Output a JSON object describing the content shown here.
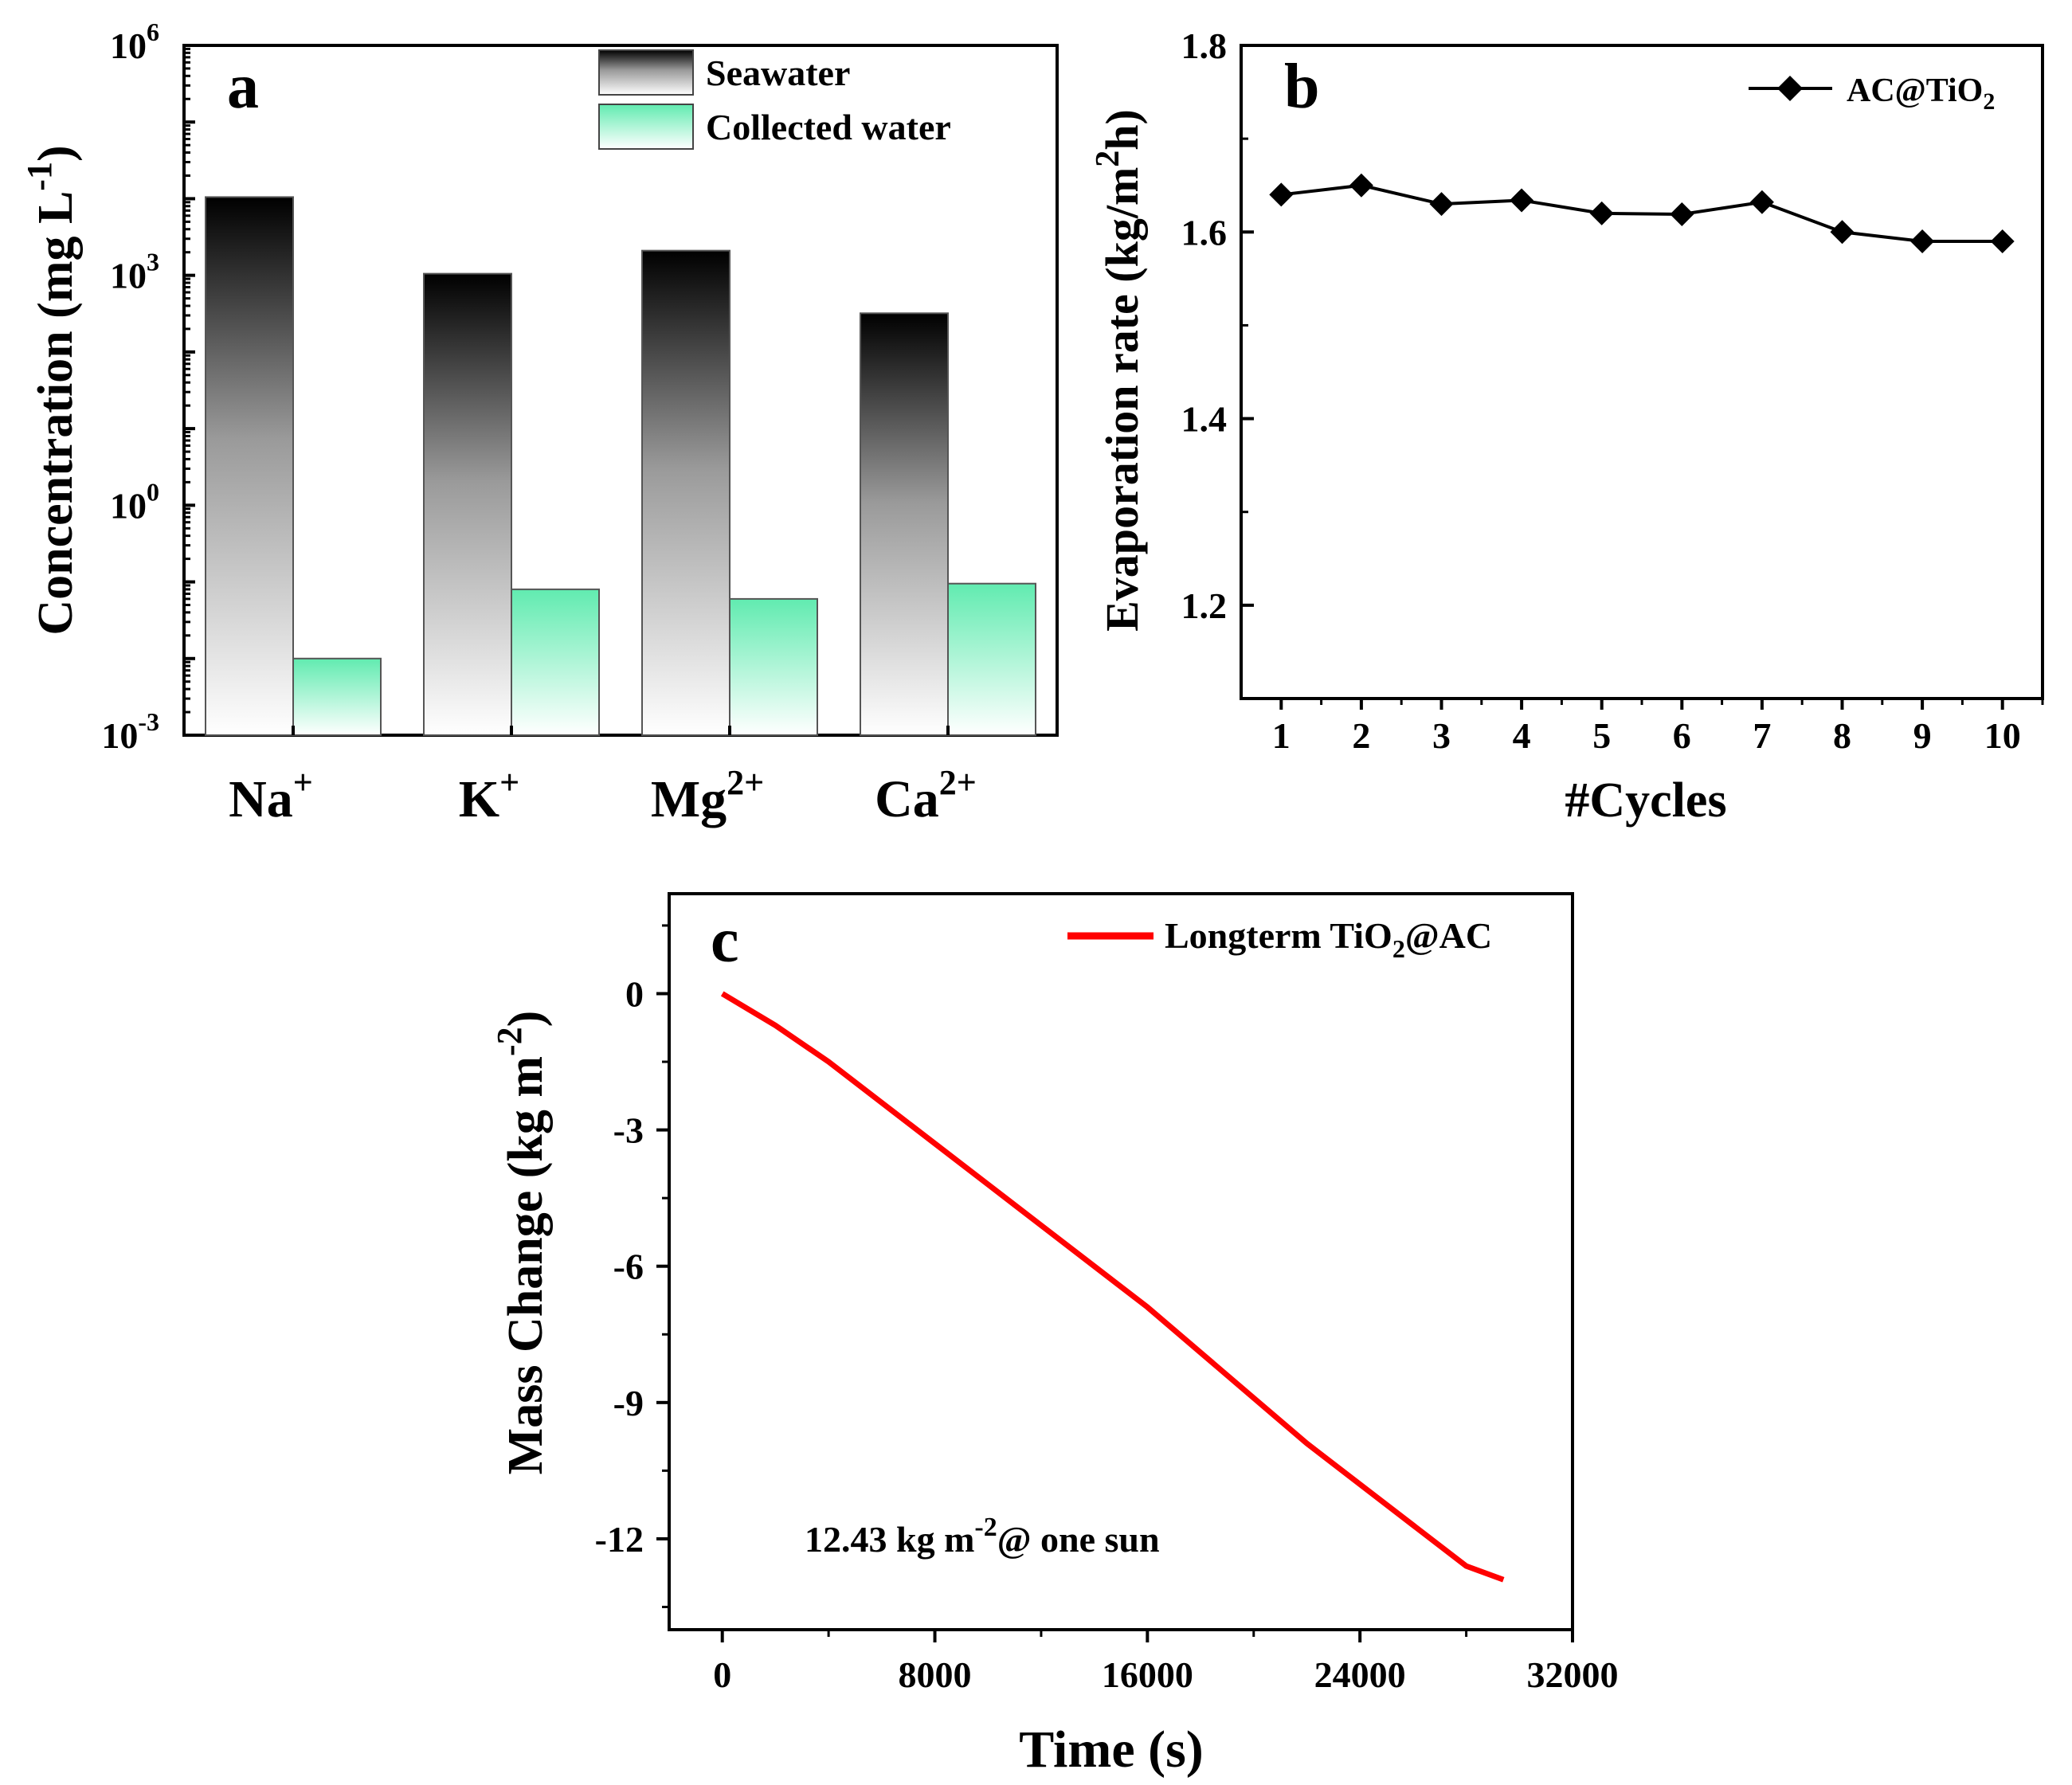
{
  "chart_data": [
    {
      "panel": "a",
      "type": "bar",
      "yscale": "log",
      "ylabel_main": "Concentration (mg L",
      "ylabel_sup": "-1",
      "ylabel_tail": ")",
      "ylim": [
        0.001,
        1000000
      ],
      "yticks": [
        {
          "value": 0.001,
          "base": "10",
          "exp": "-3"
        },
        {
          "value": 1,
          "base": "10",
          "exp": "0"
        },
        {
          "value": 1000,
          "base": "10",
          "exp": "3"
        },
        {
          "value": 1000000,
          "base": "10",
          "exp": "6"
        }
      ],
      "categories": [
        {
          "base": "Na",
          "sup": "+"
        },
        {
          "base": "K",
          "sup": "+"
        },
        {
          "base": "Mg",
          "sup": "2+"
        },
        {
          "base": "Ca",
          "sup": "2+"
        }
      ],
      "series": [
        {
          "name": "Seawater",
          "color": "#000000",
          "values": [
            10500,
            1050,
            2100,
            320
          ]
        },
        {
          "name": "Collected water",
          "color": "#61ebb0",
          "values": [
            0.01,
            0.08,
            0.06,
            0.095
          ]
        }
      ]
    },
    {
      "panel": "b",
      "type": "line",
      "xlabel": "#Cycles",
      "ylabel_main": "Evaporation rate (kg/m",
      "ylabel_sup": "2",
      "ylabel_tail": "h)",
      "xlim": [
        0.5,
        10.5
      ],
      "ylim": [
        1.1,
        1.8
      ],
      "xticks": [
        1,
        2,
        3,
        4,
        5,
        6,
        7,
        8,
        9,
        10
      ],
      "yticks": [
        1.2,
        1.4,
        1.6,
        1.8
      ],
      "ytick_labels": [
        "1.2",
        "1.4",
        "1.6",
        "1.8"
      ],
      "series": [
        {
          "name_base": "AC@TiO",
          "name_sub": "2",
          "color": "#000000",
          "marker": "diamond",
          "x": [
            1,
            2,
            3,
            4,
            5,
            6,
            7,
            8,
            9,
            10
          ],
          "y": [
            1.64,
            1.65,
            1.63,
            1.634,
            1.62,
            1.619,
            1.632,
            1.6,
            1.59,
            1.59
          ]
        }
      ]
    },
    {
      "panel": "c",
      "type": "line",
      "xlabel": "Time (s)",
      "ylabel_main": "Mass Change (kg m",
      "ylabel_sup": "-2",
      "ylabel_tail": ")",
      "xlim": [
        -2000,
        32000
      ],
      "ylim": [
        -14,
        2.2
      ],
      "xticks": [
        0,
        8000,
        16000,
        24000,
        32000
      ],
      "yticks": [
        0,
        -3,
        -6,
        -9,
        -12
      ],
      "series": [
        {
          "name_pre": "Longterm TiO",
          "name_sub": "2",
          "name_post": "@AC",
          "color": "#ff0000",
          "x": [
            0,
            2000,
            4000,
            6000,
            8000,
            10000,
            12000,
            14000,
            16000,
            18000,
            20000,
            22000,
            24000,
            26000,
            28000,
            29400
          ],
          "y": [
            0,
            -0.7,
            -1.5,
            -2.4,
            -3.3,
            -4.2,
            -5.1,
            -6.0,
            -6.9,
            -7.9,
            -8.9,
            -9.9,
            -10.8,
            -11.7,
            -12.6,
            -12.9
          ]
        }
      ],
      "annotation_pre": "12.43 kg m",
      "annotation_sup": "-2",
      "annotation_post": "@ one sun"
    }
  ]
}
